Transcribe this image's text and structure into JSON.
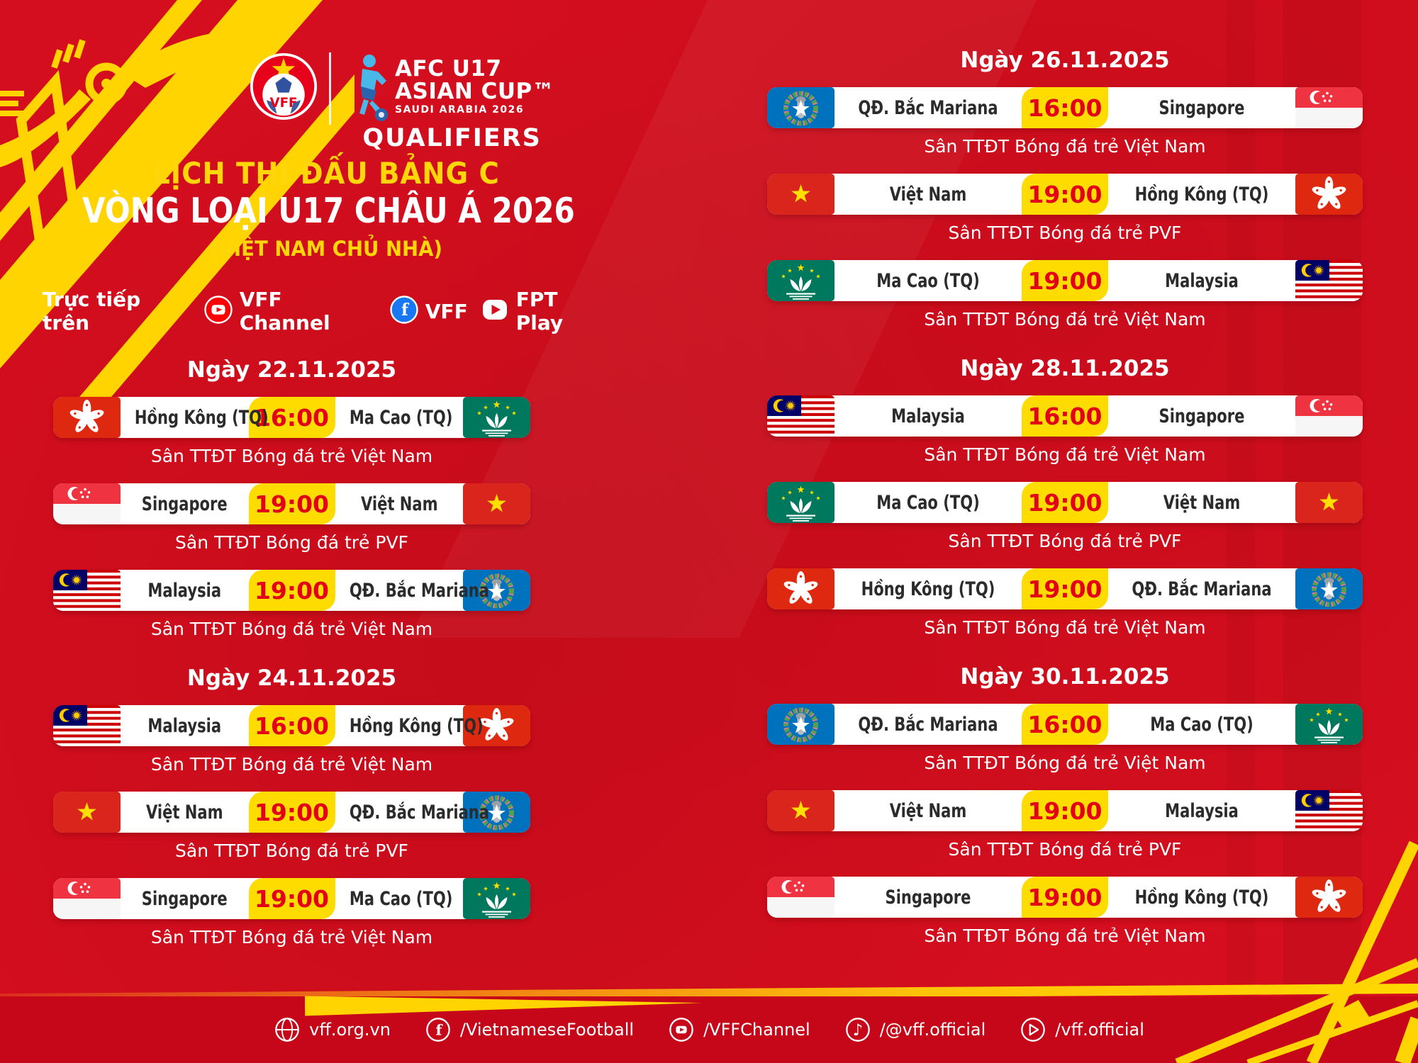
{
  "header": {
    "vff_label": "VFF",
    "afc": {
      "line1": "AFC U17",
      "line2": "ASIAN CUP™",
      "line3": "SAUDI ARABIA 2026",
      "qualifiers": "QUALIFIERS"
    },
    "title_line1": "LỊCH THI ĐẤU BẢNG C",
    "title_line2": "VÒNG LOẠI U17 CHÂU Á 2026",
    "title_line3": "(VIỆT NAM CHỦ NHÀ)",
    "live": {
      "label": "Trực tiếp trên",
      "channels": [
        {
          "icon": "youtube",
          "label": "VFF Channel"
        },
        {
          "icon": "facebook",
          "label": "VFF"
        },
        {
          "icon": "fpt-play",
          "label": "FPT Play"
        }
      ]
    }
  },
  "colors": {
    "background": "#d40e1e",
    "footer": "#c60619",
    "accent_yellow": "#ffdc00",
    "decor_yellow": "#ffd400",
    "time_red": "#e30017",
    "team_text": "#2b2b2b",
    "title_yellow": "#ffd60a"
  },
  "icons": {
    "facebook_glyph": "f",
    "tiktok_glyph": "♪"
  },
  "schedule": {
    "columns": [
      {
        "side": "left",
        "groups": [
          {
            "date": "Ngày 22.11.2025",
            "matches": [
              {
                "home": "Hồng Kông (TQ)",
                "home_flag": "hk",
                "time": "16:00",
                "away": "Ma Cao (TQ)",
                "away_flag": "mo",
                "venue": "Sân TTĐT Bóng đá trẻ Việt Nam"
              },
              {
                "home": "Singapore",
                "home_flag": "sg",
                "time": "19:00",
                "away": "Việt Nam",
                "away_flag": "vn",
                "venue": "Sân TTĐT Bóng đá trẻ PVF"
              },
              {
                "home": "Malaysia",
                "home_flag": "my",
                "time": "19:00",
                "away": "QĐ. Bắc Mariana",
                "away_flag": "mp",
                "venue": "Sân TTĐT Bóng đá trẻ Việt Nam"
              }
            ]
          },
          {
            "date": "Ngày 24.11.2025",
            "matches": [
              {
                "home": "Malaysia",
                "home_flag": "my",
                "time": "16:00",
                "away": "Hồng Kông (TQ)",
                "away_flag": "hk",
                "venue": "Sân TTĐT Bóng đá trẻ Việt Nam"
              },
              {
                "home": "Việt Nam",
                "home_flag": "vn",
                "time": "19:00",
                "away": "QĐ. Bắc Mariana",
                "away_flag": "mp",
                "venue": "Sân TTĐT Bóng đá trẻ PVF"
              },
              {
                "home": "Singapore",
                "home_flag": "sg",
                "time": "19:00",
                "away": "Ma Cao (TQ)",
                "away_flag": "mo",
                "venue": "Sân TTĐT Bóng đá trẻ Việt Nam"
              }
            ]
          }
        ]
      },
      {
        "side": "right",
        "groups": [
          {
            "date": "Ngày 26.11.2025",
            "matches": [
              {
                "home": "QĐ. Bắc Mariana",
                "home_flag": "mp",
                "time": "16:00",
                "away": "Singapore",
                "away_flag": "sg",
                "venue": "Sân TTĐT Bóng đá trẻ Việt Nam"
              },
              {
                "home": "Việt Nam",
                "home_flag": "vn",
                "time": "19:00",
                "away": "Hồng Kông (TQ)",
                "away_flag": "hk",
                "venue": "Sân TTĐT Bóng đá trẻ PVF"
              },
              {
                "home": "Ma Cao (TQ)",
                "home_flag": "mo",
                "time": "19:00",
                "away": "Malaysia",
                "away_flag": "my",
                "venue": "Sân TTĐT Bóng đá trẻ Việt Nam"
              }
            ]
          },
          {
            "date": "Ngày 28.11.2025",
            "matches": [
              {
                "home": "Malaysia",
                "home_flag": "my",
                "time": "16:00",
                "away": "Singapore",
                "away_flag": "sg",
                "venue": "Sân TTĐT Bóng đá trẻ Việt Nam"
              },
              {
                "home": "Ma Cao (TQ)",
                "home_flag": "mo",
                "time": "19:00",
                "away": "Việt Nam",
                "away_flag": "vn",
                "venue": "Sân TTĐT Bóng đá trẻ PVF"
              },
              {
                "home": "Hồng Kông (TQ)",
                "home_flag": "hk",
                "time": "19:00",
                "away": "QĐ. Bắc Mariana",
                "away_flag": "mp",
                "venue": "Sân TTĐT Bóng đá trẻ Việt Nam"
              }
            ]
          },
          {
            "date": "Ngày 30.11.2025",
            "matches": [
              {
                "home": "QĐ. Bắc Mariana",
                "home_flag": "mp",
                "time": "16:00",
                "away": "Ma Cao (TQ)",
                "away_flag": "mo",
                "venue": "Sân TTĐT Bóng đá trẻ Việt Nam"
              },
              {
                "home": "Việt Nam",
                "home_flag": "vn",
                "time": "19:00",
                "away": "Malaysia",
                "away_flag": "my",
                "venue": "Sân TTĐT Bóng đá trẻ PVF"
              },
              {
                "home": "Singapore",
                "home_flag": "sg",
                "time": "19:00",
                "away": "Hồng Kông (TQ)",
                "away_flag": "hk",
                "venue": "Sân TTĐT Bóng đá trẻ Việt Nam"
              }
            ]
          }
        ]
      }
    ]
  },
  "footer": {
    "links": [
      {
        "icon": "globe",
        "label": "vff.org.vn"
      },
      {
        "icon": "facebook-outline",
        "label": "/VietnameseFootball"
      },
      {
        "icon": "youtube-outline",
        "label": "/VFFChannel"
      },
      {
        "icon": "tiktok",
        "label": "/@vff.official"
      },
      {
        "icon": "play-outline",
        "label": "/vff.official"
      }
    ]
  }
}
